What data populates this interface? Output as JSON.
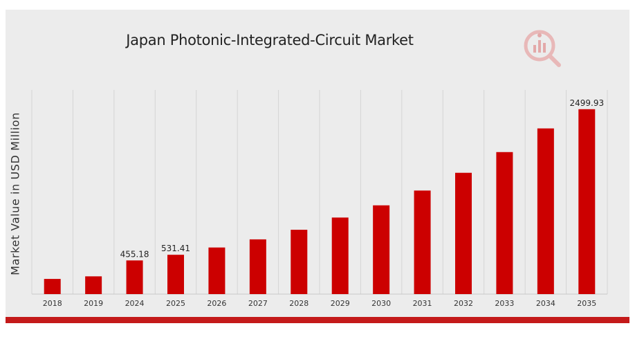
{
  "colors": {
    "bar": "#cc0000",
    "background": "#ececec",
    "accent_bar": "#c41a1a",
    "grid": "#d4d4d4"
  },
  "icons": {
    "logo": "research-logo-icon"
  },
  "chart_data": {
    "type": "bar",
    "title": "Japan Photonic-Integrated-Circuit Market",
    "ylabel": "Market Value in USD Million",
    "xlabel": "",
    "categories": [
      "2018",
      "2019",
      "2024",
      "2025",
      "2026",
      "2027",
      "2028",
      "2029",
      "2030",
      "2031",
      "2032",
      "2033",
      "2034",
      "2035"
    ],
    "values": [
      205,
      240,
      455.18,
      531.41,
      630,
      740,
      870,
      1035,
      1200,
      1400,
      1640,
      1920,
      2240,
      2499.93
    ],
    "data_labels": [
      "",
      "",
      "455.18",
      "531.41",
      "",
      "",
      "",
      "",
      "",
      "",
      "",
      "",
      "",
      "2499.93"
    ],
    "ylim": [
      0,
      2760
    ],
    "grid": "vertical",
    "legend": "none"
  }
}
